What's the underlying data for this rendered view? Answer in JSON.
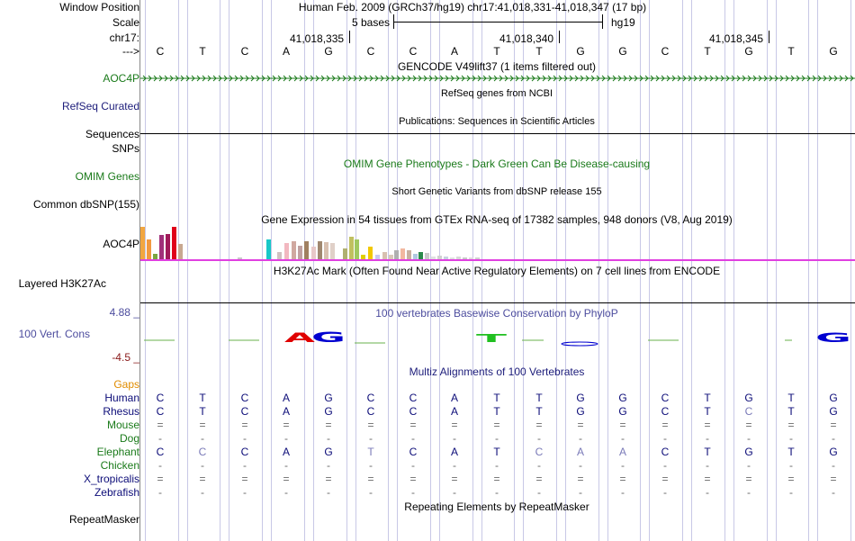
{
  "labels": {
    "window_position": "Window Position",
    "scale": "Scale",
    "chrom": "chr17:",
    "arrow": "--->",
    "aoc4p": "AOC4P",
    "refseq": "RefSeq Curated",
    "sequences": "Sequences",
    "snps": "SNPs",
    "omim": "OMIM Genes",
    "dbsnp": "Common dbSNP(155)",
    "aoc4p_expr": "AOC4P",
    "h3k27ac": "Layered H3K27Ac",
    "cons_max": "4.88 _",
    "cons": "100 Vert. Cons",
    "cons_min": "-4.5 _",
    "gaps": "Gaps",
    "human": "Human",
    "rhesus": "Rhesus",
    "mouse": "Mouse",
    "dog": "Dog",
    "elephant": "Elephant",
    "chicken": "Chicken",
    "xtrop": "X_tropicalis",
    "zebrafish": "Zebrafish",
    "repeatmasker": "RepeatMasker"
  },
  "header": {
    "position": "Human Feb. 2009 (GRCh37/hg19)   chr17:41,018,331-41,018,347 (17 bp)",
    "scale_text": "5 bases",
    "assembly": "hg19",
    "tick1": "41,018,335",
    "tick2": "41,018,340",
    "tick3": "41,018,345"
  },
  "tracks": {
    "gencode": "GENCODE V49lift37 (1 items filtered out)",
    "refseq": "RefSeq genes from NCBI",
    "publications": "Publications: Sequences in Scientific Articles",
    "omim": "OMIM Gene Phenotypes - Dark Green Can Be Disease-causing",
    "dbsnp": "Short Genetic Variants from dbSNP release 155",
    "gtex": "Gene Expression in 54 tissues from GTEx RNA-seq of 17382 samples, 948 donors (V8, Aug 2019)",
    "h3k27ac": "H3K27Ac Mark (Often Found Near Active Regulatory Elements) on 7 cell lines from ENCODE",
    "phylop": "100 vertebrates Basewise Conservation by PhyloP",
    "multiz": "Multiz Alignments of 100 Vertebrates",
    "repeatmasker": "Repeating Elements by RepeatMasker"
  },
  "sequence": [
    "C",
    "T",
    "C",
    "A",
    "G",
    "C",
    "C",
    "A",
    "T",
    "T",
    "G",
    "G",
    "C",
    "T",
    "G",
    "T",
    "G"
  ],
  "alignments": {
    "human": [
      "C",
      "T",
      "C",
      "A",
      "G",
      "C",
      "C",
      "A",
      "T",
      "T",
      "G",
      "G",
      "C",
      "T",
      "G",
      "T",
      "G"
    ],
    "rhesus": [
      "C",
      "T",
      "C",
      "A",
      "G",
      "C",
      "C",
      "A",
      "T",
      "T",
      "G",
      "G",
      "C",
      "T",
      "C",
      "T",
      "G"
    ],
    "mouse": [
      "=",
      "=",
      "=",
      "=",
      "=",
      "=",
      "=",
      "=",
      "=",
      "=",
      "=",
      "=",
      "=",
      "=",
      "=",
      "=",
      "="
    ],
    "dog": [
      "-",
      "-",
      "-",
      "-",
      "-",
      "-",
      "-",
      "-",
      "-",
      "-",
      "-",
      "-",
      "-",
      "-",
      "-",
      "-",
      "-"
    ],
    "elephant": [
      "C",
      "C",
      "C",
      "A",
      "G",
      "T",
      "C",
      "A",
      "T",
      "C",
      "A",
      "A",
      "C",
      "T",
      "G",
      "T",
      "G"
    ],
    "chicken": [
      "-",
      "-",
      "-",
      "-",
      "-",
      "-",
      "-",
      "-",
      "-",
      "-",
      "-",
      "-",
      "-",
      "-",
      "-",
      "-",
      "-"
    ],
    "xtrop": [
      "=",
      "=",
      "=",
      "=",
      "=",
      "=",
      "=",
      "=",
      "=",
      "=",
      "=",
      "=",
      "=",
      "=",
      "=",
      "=",
      "="
    ],
    "zebrafish": [
      "-",
      "-",
      "-",
      "-",
      "-",
      "-",
      "-",
      "-",
      "-",
      "-",
      "-",
      "-",
      "-",
      "-",
      "-",
      "-",
      "-"
    ]
  },
  "colors": {
    "aoc4p": "#1a7a1a",
    "refseq": "#1c1c7a",
    "omim": "#1a7a1a",
    "cons": "#4d4d9e",
    "gaps": "#e08c00",
    "species": "#0c0c78",
    "green_species": "#1a7a1a",
    "mismatch": "#7a7ab8",
    "grid": "#c8c8e6"
  }
}
